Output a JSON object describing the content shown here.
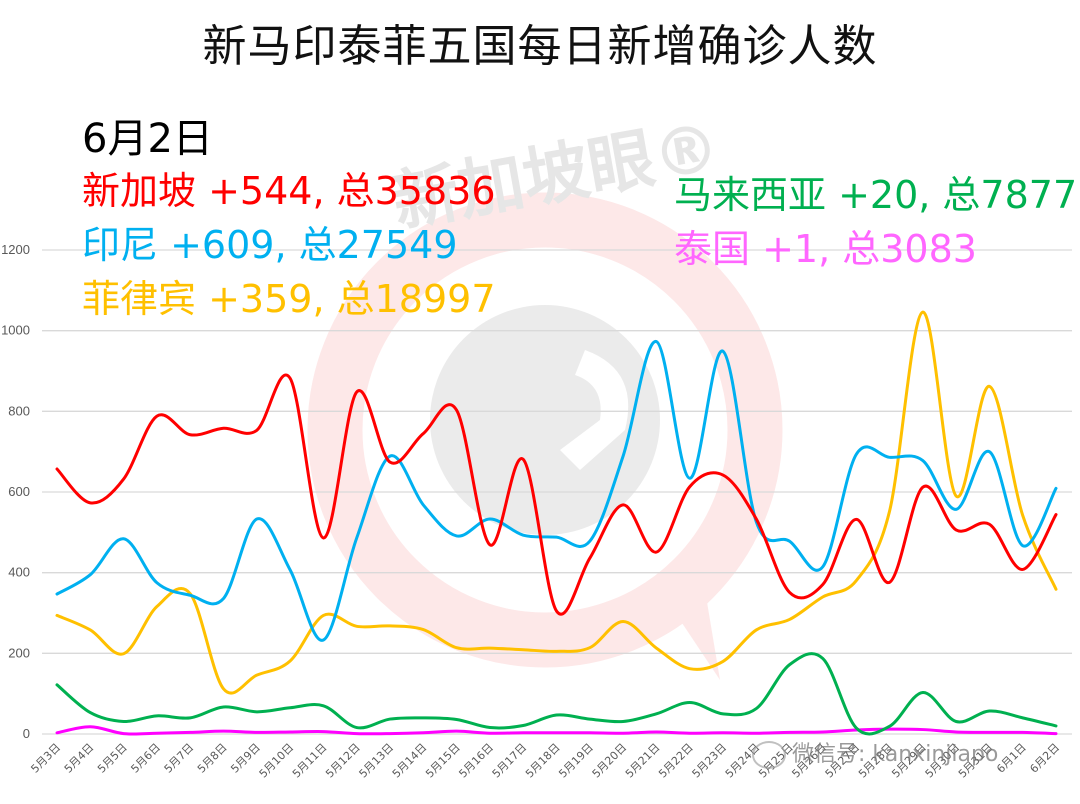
{
  "title": "新马印泰菲五国每日新增确诊人数",
  "date_label": "6月2日",
  "legend": [
    {
      "country": "新加坡",
      "text": "新加坡 +544, 总35836",
      "daily": 544,
      "total": 35836,
      "color": "#ff0000"
    },
    {
      "country": "印尼",
      "text": "印尼 +609, 总27549",
      "daily": 609,
      "total": 27549,
      "color": "#00b0f0"
    },
    {
      "country": "菲律宾",
      "text": "菲律宾 +359, 总18997",
      "daily": 359,
      "total": 18997,
      "color": "#ffc000"
    },
    {
      "country": "马来西亚",
      "text": "马来西亚 +20, 总7877",
      "daily": 20,
      "total": 7877,
      "color": "#00b050"
    },
    {
      "country": "泰国",
      "text": "泰国 +1, 总3083",
      "daily": 1,
      "total": 3083,
      "color": "#ff00ff"
    }
  ],
  "watermark": {
    "brand": "新加坡眼®",
    "wechat": "微信号: kanxinjiapo"
  },
  "chart_data": {
    "type": "line",
    "title": "新马印泰菲五国每日新增确诊人数",
    "xlabel": "",
    "ylabel": "",
    "ylim": [
      0,
      1200
    ],
    "yticks": [
      0,
      200,
      400,
      600,
      800,
      1000,
      1200
    ],
    "grid": true,
    "legend_position": "top (inline text)",
    "categories": [
      "5月3日",
      "5月4日",
      "5月5日",
      "5月6日",
      "5月7日",
      "5月8日",
      "5月9日",
      "5月10日",
      "5月11日",
      "5月12日",
      "5月13日",
      "5月14日",
      "5月15日",
      "5月16日",
      "5月17日",
      "5月18日",
      "5月19日",
      "5月20日",
      "5月21日",
      "5月22日",
      "5月23日",
      "5月24日",
      "5月25日",
      "5月26日",
      "5月27日",
      "5月28日",
      "5月29日",
      "5月30日",
      "5月31日",
      "6月1日",
      "6月2日"
    ],
    "series": [
      {
        "name": "新加坡",
        "color": "#ff0000",
        "values": [
          657,
          573,
          632,
          788,
          742,
          758,
          753,
          882,
          486,
          848,
          674,
          745,
          803,
          469,
          681,
          305,
          436,
          568,
          451,
          613,
          642,
          533,
          351,
          371,
          532,
          376,
          612,
          506,
          520,
          408,
          544
        ]
      },
      {
        "name": "印尼",
        "color": "#00b0f0",
        "values": [
          347,
          395,
          484,
          375,
          344,
          336,
          533,
          407,
          233,
          486,
          689,
          568,
          491,
          533,
          493,
          488,
          478,
          689,
          973,
          634,
          949,
          526,
          478,
          415,
          693,
          686,
          678,
          557,
          700,
          467,
          609
        ]
      },
      {
        "name": "菲律宾",
        "color": "#ffc000",
        "values": [
          294,
          258,
          199,
          316,
          348,
          112,
          146,
          181,
          294,
          267,
          268,
          259,
          214,
          213,
          209,
          205,
          214,
          279,
          213,
          162,
          180,
          258,
          284,
          340,
          380,
          552,
          1046,
          590,
          862,
          542,
          359
        ]
      },
      {
        "name": "马来西亚",
        "color": "#00b050",
        "values": [
          122,
          53,
          31,
          45,
          40,
          67,
          55,
          65,
          70,
          16,
          37,
          40,
          36,
          16,
          21,
          47,
          37,
          31,
          50,
          78,
          50,
          63,
          172,
          187,
          15,
          19,
          103,
          31,
          57,
          40,
          20
        ]
      },
      {
        "name": "泰国",
        "color": "#ff00ff",
        "values": [
          3,
          18,
          1,
          2,
          4,
          7,
          4,
          5,
          6,
          1,
          1,
          3,
          7,
          2,
          3,
          3,
          3,
          2,
          5,
          2,
          3,
          2,
          4,
          5,
          10,
          12,
          11,
          5,
          4,
          4,
          1
        ]
      }
    ]
  }
}
